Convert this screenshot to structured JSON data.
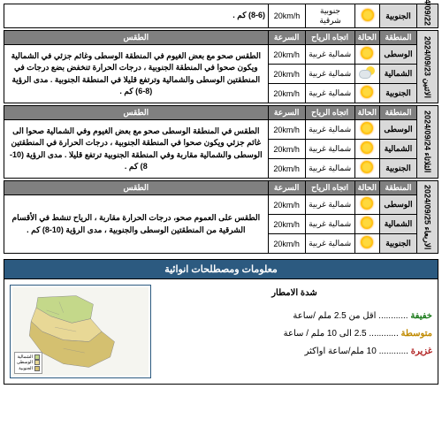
{
  "headers": {
    "region": "المنطقة",
    "condition": "الحالة",
    "windDir": "اتجاه الرياح",
    "speed": "السرعة",
    "weather": "الطقس"
  },
  "days": [
    {
      "date": "2024/09/22",
      "partial": true,
      "rows": [
        {
          "region": "الجنوبية",
          "icon": "sun",
          "wind": "جنوبية شرقية",
          "speed": "20km/h"
        }
      ],
      "descTail": "(8-6) كم ."
    },
    {
      "date": "الاثنين 2024/09/23",
      "rows": [
        {
          "region": "الوسطى",
          "icon": "sun",
          "wind": "شمالية غربية",
          "speed": "20km/h"
        },
        {
          "region": "الشمالية",
          "icon": "partly",
          "wind": "شمالية غربية",
          "speed": "20km/h"
        },
        {
          "region": "الجنوبية",
          "icon": "sun",
          "wind": "شمالية غربية",
          "speed": "20km/h"
        }
      ],
      "desc": "الطقس صحو مع بعض الغيوم في المنطقة الوسطى وغائم جزئي في الشمالية ويكون صحوا في المنطقة الجنوبية ، درجات الحرارة تنخفض بضع درجات في المنطقتين الوسطى والشمالية وترتفع قليلا في المنطقة الجنوبية . مدى الرؤية (8-6) كم ."
    },
    {
      "date": "الثلاثاء 2024/09/24",
      "rows": [
        {
          "region": "الوسطى",
          "icon": "sun",
          "wind": "شمالية غربية",
          "speed": "20km/h"
        },
        {
          "region": "الشمالية",
          "icon": "sun",
          "wind": "شمالية غربية",
          "speed": "20km/h"
        },
        {
          "region": "الجنوبية",
          "icon": "sun",
          "wind": "شمالية غربية",
          "speed": "20km/h"
        }
      ],
      "desc": "الطقس في المنطقة الوسطى صحو مع بعض الغيوم وفي الشمالية صحوا الى غائم جزئي ويكون صحوا في المنطقة الجنوبية ، درجات الحرارة في المنطقتين الوسطى والشمالية مقاربة وفي المنطقة الجنوبية ترتفع قليلا . مدى الرؤية (10-8) كم ."
    },
    {
      "date": "الاربعاء 2024/09/25",
      "rows": [
        {
          "region": "الوسطى",
          "icon": "sun",
          "wind": "شمالية غربية",
          "speed": "20km/h"
        },
        {
          "region": "الشمالية",
          "icon": "sun",
          "wind": "شمالية غربية",
          "speed": "20km/h"
        },
        {
          "region": "الجنوبية",
          "icon": "sun",
          "wind": "شمالية غربية",
          "speed": "20km/h"
        }
      ],
      "desc": "الطقس على العموم صحو، درجات الحرارة مقاربة ، الرياح تنشط في الأقسام الشرقية من المنطقتين الوسطى والجنوبية ، مدى الرؤية (10-8) كم ."
    }
  ],
  "info": {
    "header": "معلومات ومصطلحات انوائية",
    "rainTitle": "شدة الامطار",
    "light": {
      "label": "خفيفة",
      "text": "اقل من 2.5 ملم /ساعة"
    },
    "med": {
      "label": "متوسطة",
      "text": "2.5 الى 10 ملم / ساعة"
    },
    "heavy": {
      "label": "غزيرة",
      "text": "10 ملم/ساعة اواكثر"
    },
    "dots": " ............ "
  },
  "legend": {
    "north": "الشمالية",
    "central": "الوسطى",
    "south": "الجنوبية"
  },
  "colors": {
    "north": "#c4d88a",
    "central": "#e8d896",
    "south": "#d4c070"
  }
}
